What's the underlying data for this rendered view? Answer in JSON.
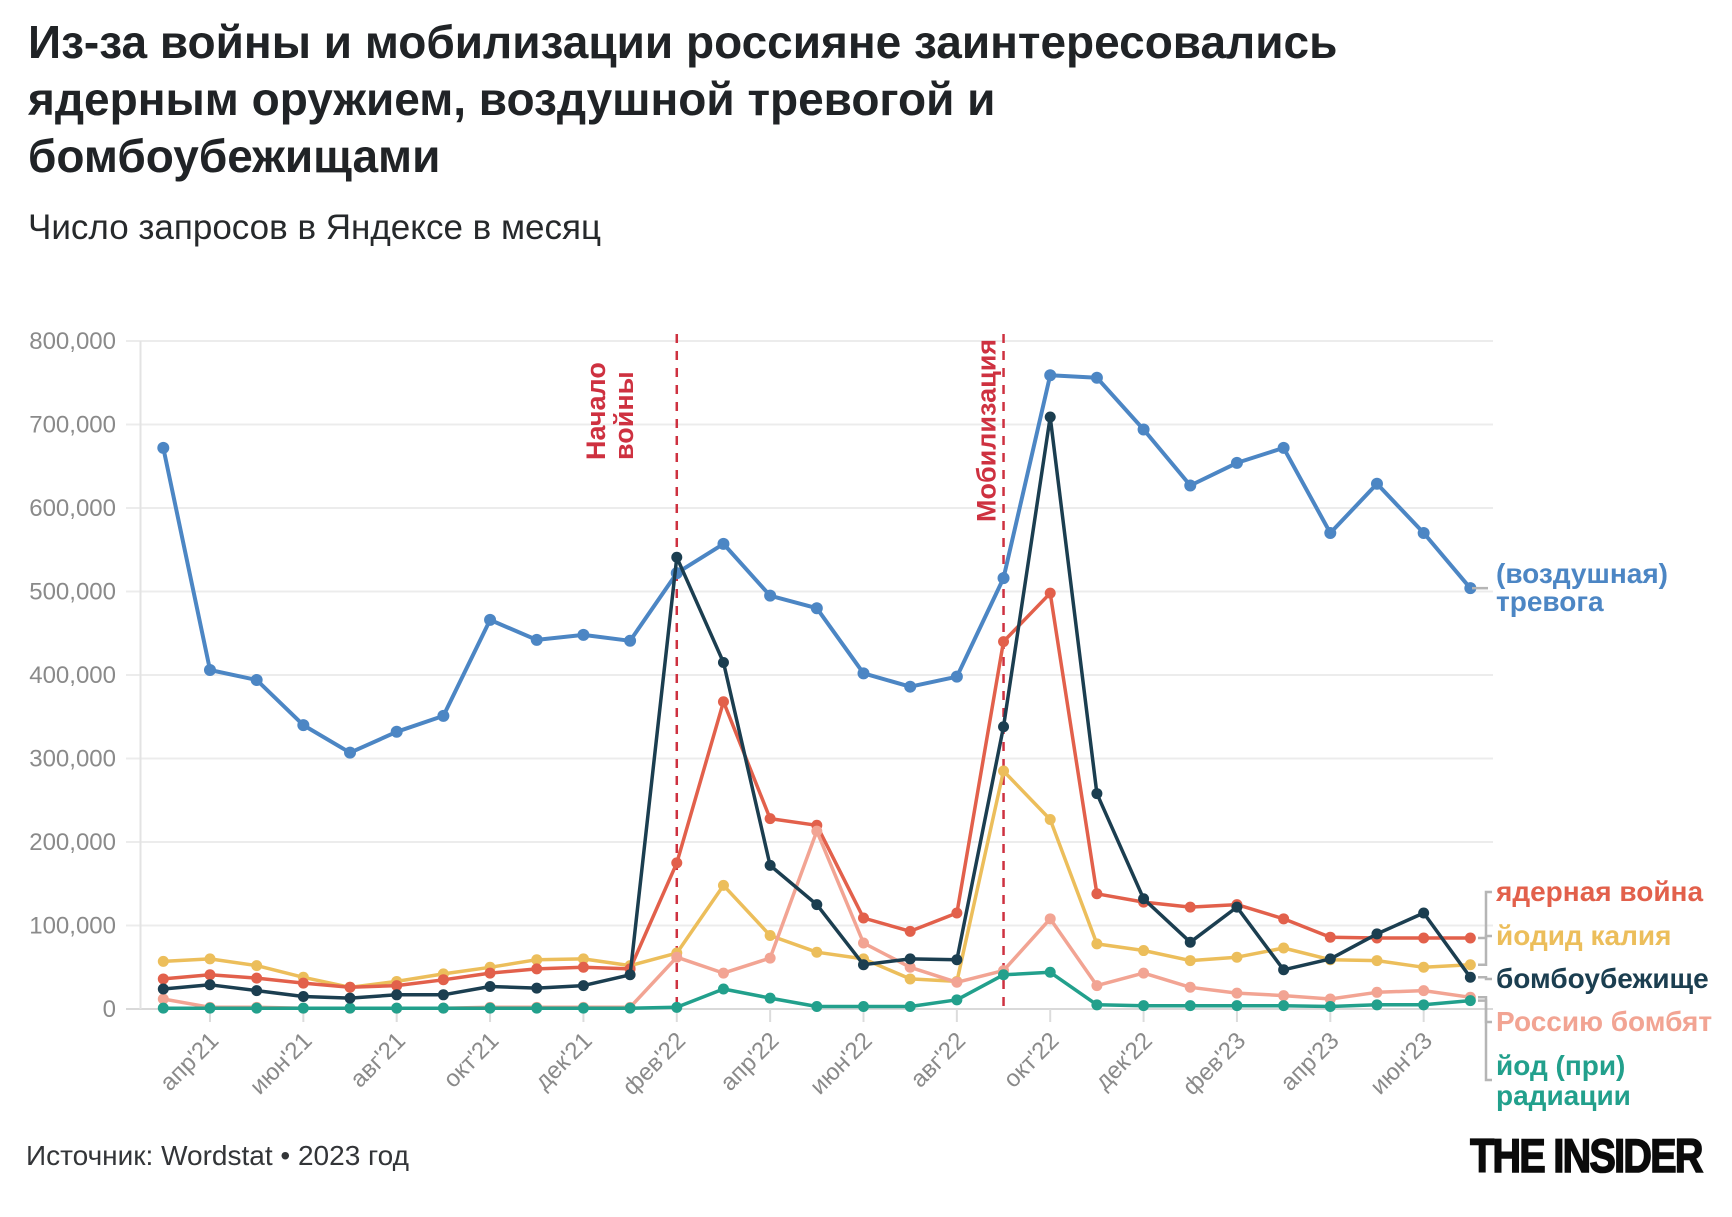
{
  "header": {
    "title_lines": [
      "Из-за войны и мобилизации россияне заинтересовались",
      "ядерным оружием, воздушной тревогой и",
      "бомбоубежищами"
    ],
    "subtitle": "Число запросов в Яндексе в месяц"
  },
  "footer": {
    "source": "Источник: Wordstat • 2023 год",
    "logo": "THE INSIDER"
  },
  "chart_data": {
    "type": "line",
    "title": "Число запросов в Яндексе в месяц",
    "grid": true,
    "legend_position": "right",
    "ylim": [
      0,
      800000
    ],
    "y_tick_labels": [
      "0",
      "100,000",
      "200,000",
      "300,000",
      "400,000",
      "500,000",
      "600,000",
      "700,000",
      "800,000"
    ],
    "x": [
      "мар'21",
      "апр'21",
      "май'21",
      "июн'21",
      "июл'21",
      "авг'21",
      "сен'21",
      "окт'21",
      "ноя'21",
      "дек'21",
      "янв'22",
      "фев'22",
      "мар'22",
      "апр'22",
      "май'22",
      "июн'22",
      "июл'22",
      "авг'22",
      "сен'22",
      "окт'22",
      "ноя'22",
      "дек'22",
      "янв'23",
      "фев'23",
      "мар'23",
      "апр'23",
      "май'23",
      "июн'23",
      "июл'23"
    ],
    "x_axis_labels": [
      "апр'21",
      "июн'21",
      "авг'21",
      "окт'21",
      "дек'21",
      "фев'22",
      "апр'22",
      "июн'22",
      "авг'22",
      "окт'22",
      "дек'22",
      "фев'23",
      "апр'23",
      "июн'23"
    ],
    "x_axis_label_indices": [
      1,
      3,
      5,
      7,
      9,
      11,
      13,
      15,
      17,
      19,
      21,
      23,
      25,
      27
    ],
    "series": [
      {
        "id": "alarm",
        "name": "(воздушная) тревога",
        "legend_lines": [
          "(воздушная)",
          "тревога"
        ],
        "color": "#4C86C4",
        "values": [
          672000,
          406000,
          394000,
          340000,
          307000,
          332000,
          351000,
          466000,
          442000,
          448000,
          441000,
          522000,
          557000,
          495000,
          480000,
          402000,
          386000,
          398000,
          516000,
          759000,
          756000,
          694000,
          627000,
          654000,
          672000,
          570000,
          629000,
          570000,
          504000
        ]
      },
      {
        "id": "nuclear",
        "name": "ядерная война",
        "legend_lines": [
          "ядерная война"
        ],
        "color": "#E2604B",
        "values": [
          36000,
          41000,
          37000,
          31000,
          26000,
          28000,
          35000,
          43000,
          48000,
          50000,
          48000,
          175000,
          368000,
          228000,
          220000,
          109000,
          93000,
          115000,
          440000,
          498000,
          138000,
          128000,
          122000,
          125000,
          108000,
          86000,
          85000,
          85000,
          85000
        ]
      },
      {
        "id": "iodide",
        "name": "йодид калия",
        "legend_lines": [
          "йодид калия"
        ],
        "color": "#ECBE5B",
        "values": [
          57000,
          60000,
          52000,
          38000,
          26000,
          33000,
          42000,
          50000,
          59000,
          60000,
          52000,
          67000,
          148000,
          88000,
          68000,
          60000,
          36000,
          33000,
          285000,
          227000,
          78000,
          70000,
          58000,
          62000,
          73000,
          59000,
          58000,
          50000,
          53000
        ]
      },
      {
        "id": "shelter",
        "name": "бомбоубежище",
        "legend_lines": [
          "бомбоубежище"
        ],
        "color": "#1B3E50",
        "values": [
          24000,
          29000,
          22000,
          15000,
          13000,
          17000,
          17000,
          27000,
          25000,
          28000,
          41000,
          541000,
          415000,
          172000,
          125000,
          53000,
          60000,
          59000,
          338000,
          709000,
          258000,
          132000,
          80000,
          122000,
          47000,
          60000,
          90000,
          115000,
          38000
        ]
      },
      {
        "id": "bombed",
        "name": "Россию бомбят",
        "legend_lines": [
          "Россию бомбят"
        ],
        "color": "#F2A493",
        "values": [
          12000,
          2000,
          2000,
          1000,
          1000,
          1000,
          1000,
          2000,
          2000,
          2000,
          2000,
          62000,
          43000,
          61000,
          213000,
          79000,
          50000,
          32000,
          46000,
          108000,
          28000,
          43000,
          26000,
          19000,
          16000,
          12000,
          20000,
          22000,
          14000
        ]
      },
      {
        "id": "iodine",
        "name": "йод (при) радиации",
        "legend_lines": [
          "йод (при)",
          "радиации"
        ],
        "color": "#22A08C",
        "values": [
          1000,
          1000,
          1000,
          1000,
          1000,
          1000,
          1000,
          1000,
          1000,
          1000,
          1000,
          2000,
          24000,
          13000,
          3000,
          3000,
          3000,
          11000,
          41000,
          44000,
          5000,
          4000,
          4000,
          4000,
          4000,
          3000,
          5000,
          5000,
          10000
        ]
      }
    ],
    "annotations": [
      {
        "label": "Начало войны",
        "lines": [
          "Начало",
          "войны"
        ],
        "month": "фев'22",
        "month_index": 11,
        "color": "#CE3140"
      },
      {
        "label": "Мобилизация",
        "lines": [
          "Мобилизация"
        ],
        "month": "сен'22",
        "month_index": 18,
        "color": "#CE3140"
      }
    ],
    "colors": {
      "grid": "#ececec",
      "zero_line": "#d9d9d9",
      "axis_line": "#e3e3e3",
      "tick_text": "#8a8a8a",
      "connector": "#b5b5b5",
      "annotation_red": "#CE3140"
    }
  }
}
